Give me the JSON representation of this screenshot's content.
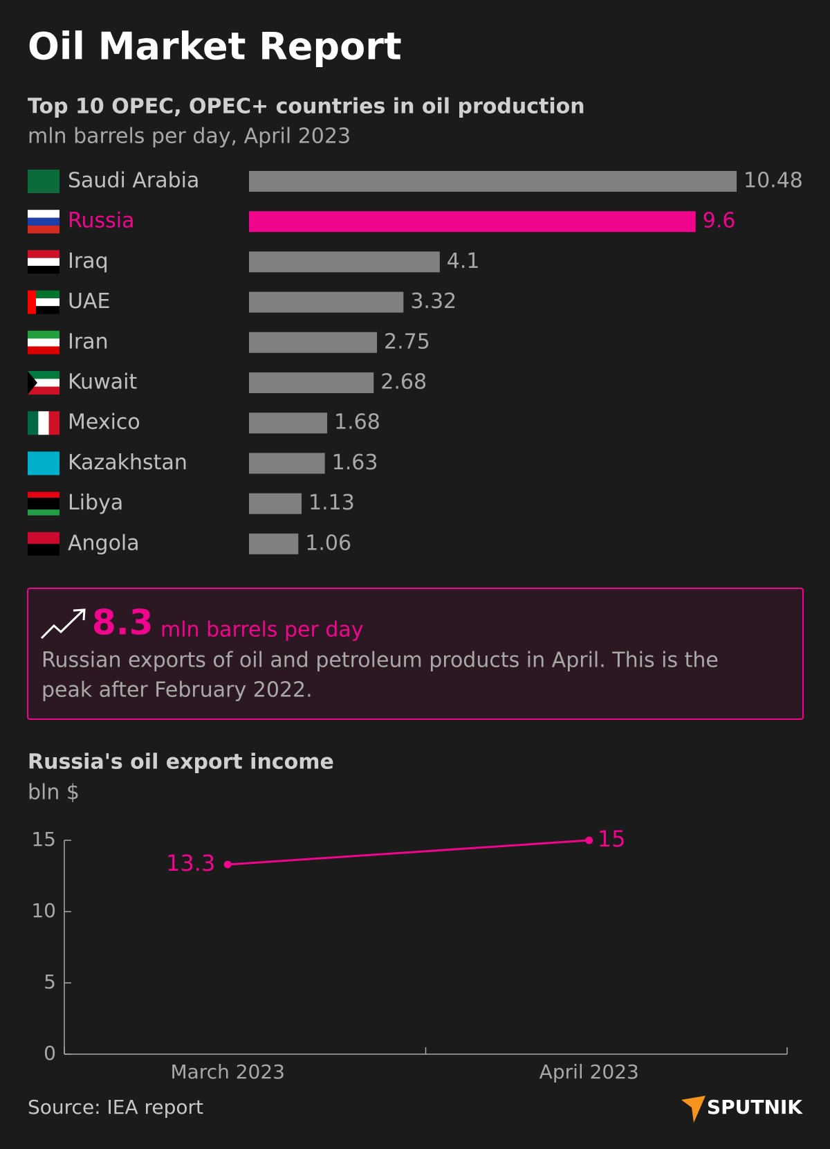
{
  "title": "Oil Market Report",
  "chart_data": [
    {
      "type": "hbar",
      "title": "Top 10 OPEC, OPEC+ countries in oil production",
      "subtitle": "mln barrels per day, April 2023",
      "categories": [
        "Saudi Arabia",
        "Russia",
        "Iraq",
        "UAE",
        "Iran",
        "Kuwait",
        "Mexico",
        "Kazakhstan",
        "Libya",
        "Angola"
      ],
      "values": [
        10.48,
        9.6,
        4.1,
        3.32,
        2.75,
        2.68,
        1.68,
        1.63,
        1.13,
        1.06
      ],
      "color": "#808080",
      "colors": [
        "#808080",
        "#f0068c",
        "#808080",
        "#808080",
        "#808080",
        "#808080",
        "#808080",
        "#808080",
        "#808080",
        "#808080"
      ]
    },
    {
      "type": "line",
      "title": "Russia's oil export income",
      "subtitle": "bln $",
      "categories": [
        "March 2023",
        "April 2023"
      ],
      "values": [
        13.3,
        15
      ],
      "color": "#f0068c",
      "ylim": [
        0,
        15
      ],
      "yticks": [
        0,
        5,
        10,
        15
      ]
    }
  ],
  "callout": {
    "value": "8.3",
    "unit": "mln barrels per day",
    "text_lines": [
      "Russian exports of oil and petroleum products in April. This is the",
      "peak after February 2022."
    ]
  },
  "source": "Source: IEA report",
  "logo": "SPUTNIK"
}
